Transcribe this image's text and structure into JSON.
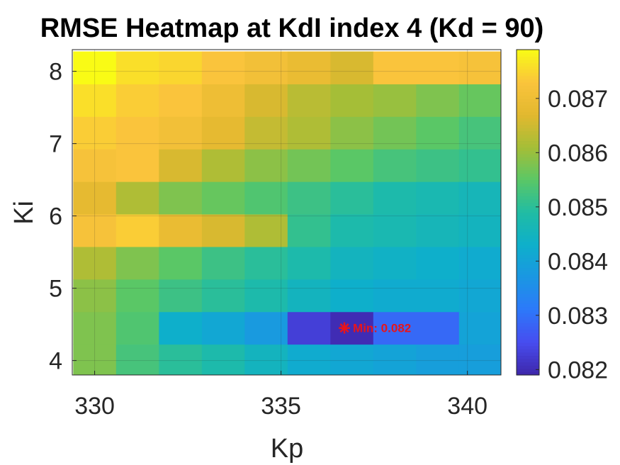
{
  "chart_data": {
    "type": "heatmap",
    "title": "RMSE Heatmap at KdI index 4 (Kd = 90)",
    "xlabel": "Kp",
    "ylabel": "Ki",
    "colormap": "parula",
    "x": [
      330.0,
      331.15,
      332.3,
      333.45,
      334.6,
      335.75,
      336.9,
      338.05,
      339.2,
      340.35
    ],
    "y": [
      4.0,
      4.45,
      4.9,
      5.35,
      5.8,
      6.25,
      6.7,
      7.15,
      7.6,
      8.05
    ],
    "xlim": [
      329.4,
      340.9
    ],
    "ylim": [
      3.8,
      8.3
    ],
    "xticks": [
      "330",
      "335",
      "340"
    ],
    "xtick_values": [
      330,
      335,
      340
    ],
    "yticks": [
      "4",
      "5",
      "6",
      "7",
      "8"
    ],
    "ytick_values": [
      4,
      5,
      6,
      7,
      8
    ],
    "z": [
      [
        0.0858,
        0.0853,
        0.085,
        0.0848,
        0.0845,
        0.0842,
        0.0841,
        0.084,
        0.0839,
        0.0839
      ],
      [
        0.0858,
        0.0854,
        0.0843,
        0.0841,
        0.0838,
        0.0823,
        0.082,
        0.0829,
        0.0829,
        0.084
      ],
      [
        0.0859,
        0.0855,
        0.0852,
        0.085,
        0.0848,
        0.0845,
        0.0843,
        0.0842,
        0.0842,
        0.0841
      ],
      [
        0.0862,
        0.0858,
        0.0855,
        0.0852,
        0.085,
        0.0848,
        0.0845,
        0.0844,
        0.0843,
        0.0842
      ],
      [
        0.0872,
        0.0874,
        0.0869,
        0.0866,
        0.0862,
        0.0851,
        0.0848,
        0.0847,
        0.0846,
        0.0845
      ],
      [
        0.0868,
        0.0862,
        0.0858,
        0.0856,
        0.0854,
        0.0852,
        0.085,
        0.0848,
        0.0847,
        0.0846
      ],
      [
        0.0872,
        0.0873,
        0.0866,
        0.0862,
        0.0859,
        0.0857,
        0.0855,
        0.0853,
        0.0852,
        0.0851
      ],
      [
        0.0874,
        0.0873,
        0.0871,
        0.0868,
        0.0864,
        0.0862,
        0.0859,
        0.0857,
        0.0855,
        0.0853
      ],
      [
        0.0876,
        0.0874,
        0.0873,
        0.087,
        0.0866,
        0.0863,
        0.0861,
        0.086,
        0.0858,
        0.0856
      ],
      [
        0.0879,
        0.0876,
        0.0875,
        0.0873,
        0.0871,
        0.0869,
        0.0866,
        0.0873,
        0.0873,
        0.0872
      ]
    ],
    "clim": [
      0.0819,
      0.0879
    ],
    "colorbar_ticks": [
      "0.082",
      "0.083",
      "0.084",
      "0.085",
      "0.086",
      "0.087"
    ],
    "colorbar_tick_values": [
      0.082,
      0.083,
      0.084,
      0.085,
      0.086,
      0.087
    ],
    "annotation": {
      "text": "Min: 0.082",
      "x": 336.7,
      "y": 4.45,
      "color": "#e8141b"
    },
    "grid": true
  }
}
